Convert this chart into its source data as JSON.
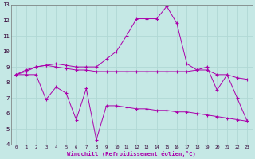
{
  "xlabel": "Windchill (Refroidissement éolien,°C)",
  "x_labels": [
    "0",
    "1",
    "2",
    "3",
    "4",
    "5",
    "6",
    "7",
    "8",
    "9",
    "10",
    "11",
    "12",
    "13",
    "14",
    "15",
    "16",
    "17",
    "18",
    "19",
    "20",
    "21",
    "22",
    "23"
  ],
  "xlim": [
    -0.5,
    23.5
  ],
  "ylim": [
    4,
    13
  ],
  "yticks": [
    4,
    5,
    6,
    7,
    8,
    9,
    10,
    11,
    12,
    13
  ],
  "bg_color": "#c5e8e5",
  "line_color": "#aa00aa",
  "grid_color": "#b0d8d5",
  "series": [
    {
      "x": [
        0,
        1,
        2,
        3,
        4,
        5,
        6,
        7,
        8,
        9,
        10,
        11,
        12,
        13,
        14,
        15,
        16,
        17,
        18,
        19,
        20,
        21,
        22,
        23
      ],
      "y": [
        8.5,
        8.8,
        9.0,
        9.1,
        9.0,
        8.9,
        8.8,
        8.8,
        8.7,
        8.7,
        8.7,
        8.7,
        8.7,
        8.7,
        8.7,
        8.7,
        8.7,
        8.7,
        8.8,
        8.8,
        8.5,
        8.5,
        8.3,
        8.2
      ]
    },
    {
      "x": [
        0,
        1,
        2,
        3,
        4,
        5,
        6,
        7,
        8,
        9,
        10,
        11,
        12,
        13,
        14,
        15,
        16,
        17,
        18,
        19,
        20,
        21,
        22,
        23
      ],
      "y": [
        8.5,
        8.7,
        9.0,
        9.1,
        9.2,
        9.1,
        9.0,
        9.0,
        9.0,
        9.5,
        10.0,
        11.0,
        12.1,
        12.1,
        12.1,
        12.9,
        11.8,
        9.2,
        8.8,
        9.0,
        7.5,
        8.5,
        7.0,
        5.5
      ]
    },
    {
      "x": [
        0,
        1,
        2,
        3,
        4,
        5,
        6,
        7,
        8,
        9,
        10,
        11,
        12,
        13,
        14,
        15,
        16,
        17,
        18,
        19,
        20,
        21,
        22,
        23
      ],
      "y": [
        8.5,
        8.5,
        8.5,
        6.9,
        7.7,
        7.3,
        5.6,
        7.6,
        4.3,
        6.5,
        6.5,
        6.4,
        6.3,
        6.3,
        6.2,
        6.2,
        6.1,
        6.1,
        6.0,
        5.9,
        5.8,
        5.7,
        5.6,
        5.5
      ]
    }
  ]
}
